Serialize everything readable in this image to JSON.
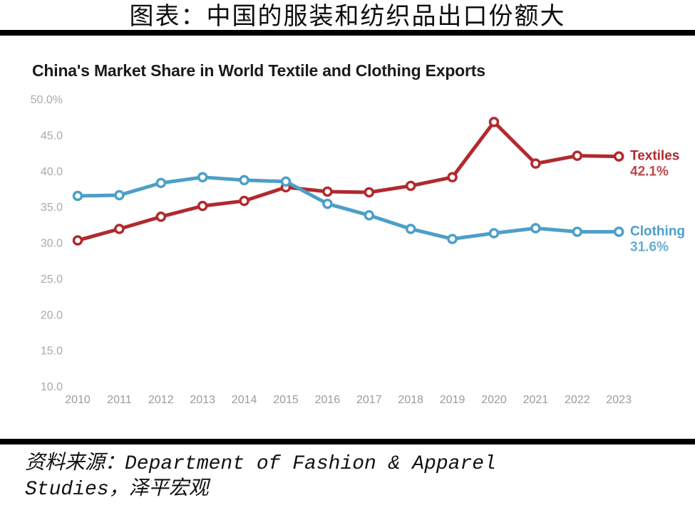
{
  "page": {
    "top_title": "图表：中国的服装和纺织品出口份额大",
    "source_text": "资料来源：Department of Fashion & Apparel Studies，泽平宏观"
  },
  "chart_data": {
    "type": "line",
    "title": "China's Market Share in World Textile and Clothing Exports",
    "xlabel": "",
    "ylabel": "",
    "ylim": [
      10,
      50
    ],
    "grid": false,
    "legend_position": "right-end-labels",
    "categories": [
      "2010",
      "2011",
      "2012",
      "2013",
      "2014",
      "2015",
      "2016",
      "2017",
      "2018",
      "2019",
      "2020",
      "2021",
      "2022",
      "2023"
    ],
    "yticks": [
      {
        "value": 50,
        "label": "50.0%"
      },
      {
        "value": 45,
        "label": "45.0"
      },
      {
        "value": 40,
        "label": "40.0"
      },
      {
        "value": 35,
        "label": "35.0"
      },
      {
        "value": 30,
        "label": "30.0"
      },
      {
        "value": 25,
        "label": "25.0"
      },
      {
        "value": 20,
        "label": "20.0"
      },
      {
        "value": 15,
        "label": "15.0"
      },
      {
        "value": 10,
        "label": "10.0"
      }
    ],
    "series": [
      {
        "name": "Textiles",
        "color": "#b02a2e",
        "end_label": "42.1%",
        "values": [
          30.4,
          32.0,
          33.7,
          35.2,
          35.9,
          37.8,
          37.2,
          37.1,
          38.0,
          39.2,
          46.9,
          41.1,
          42.2,
          42.1
        ]
      },
      {
        "name": "Clothing",
        "color": "#4d9fc7",
        "end_label": "31.6%",
        "values": [
          36.6,
          36.7,
          38.4,
          39.2,
          38.8,
          38.6,
          35.5,
          33.9,
          32.0,
          30.6,
          31.4,
          32.1,
          31.6,
          31.6
        ]
      }
    ]
  }
}
